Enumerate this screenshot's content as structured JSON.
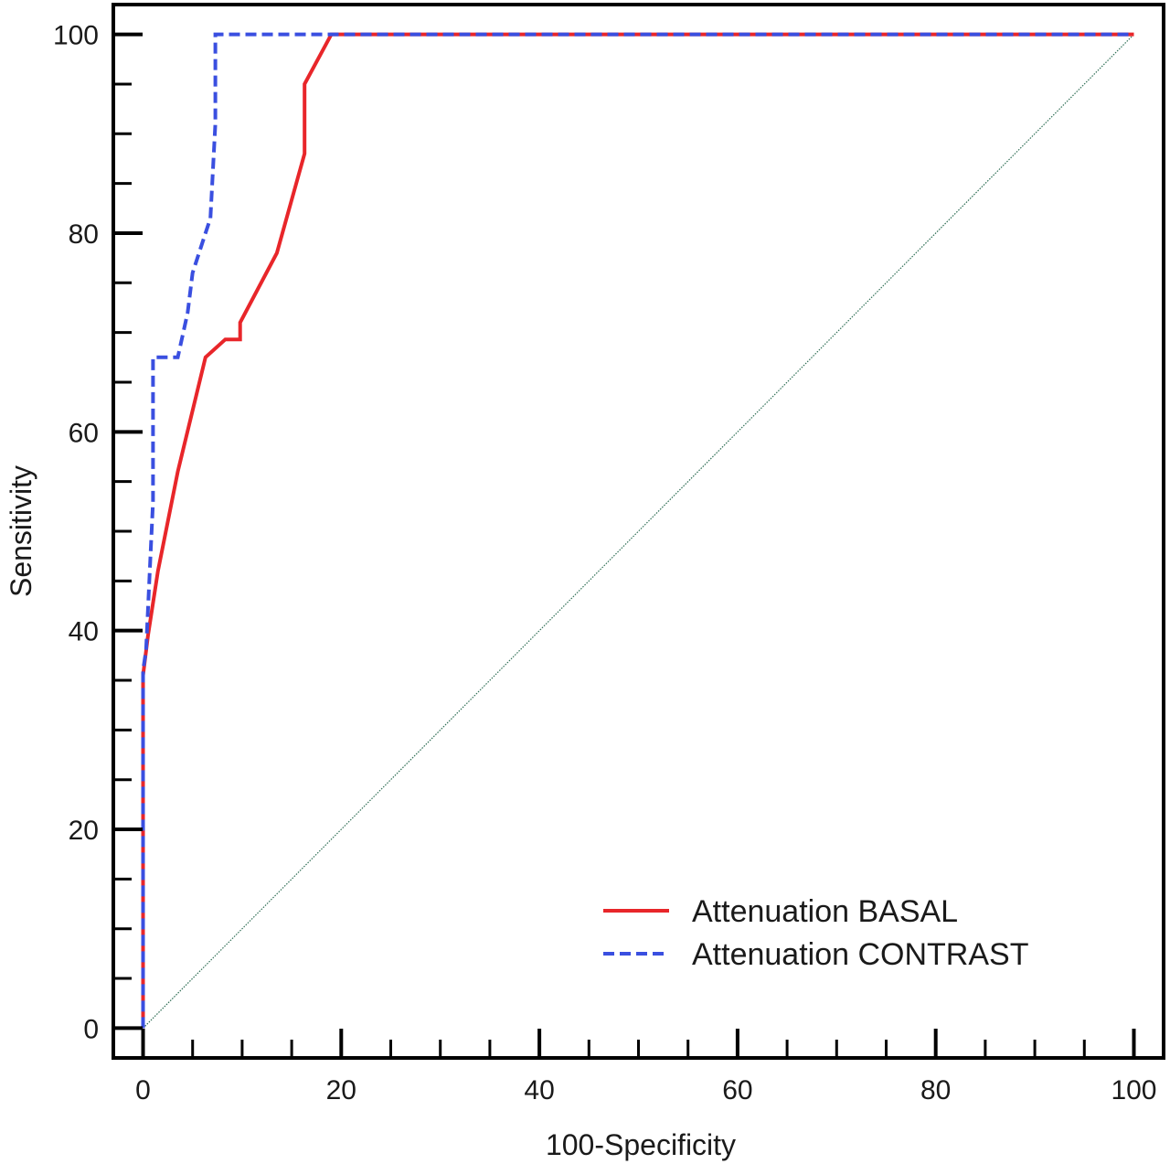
{
  "chart_data": {
    "type": "line",
    "title": "",
    "xlabel": "100-Specificity",
    "ylabel": "Sensitivity",
    "xlim": [
      -3,
      103
    ],
    "ylim": [
      -3,
      103
    ],
    "xticks": [
      0,
      20,
      40,
      60,
      80,
      100
    ],
    "yticks": [
      0,
      20,
      40,
      60,
      80,
      100
    ],
    "xminor_step": 5,
    "yminor_step": 5,
    "grid": false,
    "legend_position": "bottom-right",
    "series": [
      {
        "name": "Attenuation BASAL",
        "color": "#e8262a",
        "dash": "solid",
        "x": [
          0,
          0,
          0.5,
          1.5,
          3.5,
          6.3,
          8.3,
          9.8,
          9.8,
          13.5,
          16.3,
          16.3,
          19.0,
          100
        ],
        "y": [
          0,
          35.5,
          39.5,
          46,
          56,
          67.5,
          69.3,
          69.3,
          71,
          78,
          88,
          95,
          100,
          100
        ]
      },
      {
        "name": "Attenuation CONTRAST",
        "color": "#3a4fe0",
        "dash": "dashed",
        "x": [
          0,
          0,
          0.3,
          1.0,
          1.0,
          3.5,
          4.5,
          5.0,
          6.3,
          6.8,
          7.3,
          7.3,
          100
        ],
        "y": [
          0,
          36,
          38,
          53,
          67.5,
          67.5,
          72,
          76,
          80,
          81.5,
          91,
          100,
          100
        ]
      }
    ],
    "reference_line": {
      "x": [
        0,
        100
      ],
      "y": [
        0,
        100
      ],
      "color": "#2f6e55"
    }
  }
}
